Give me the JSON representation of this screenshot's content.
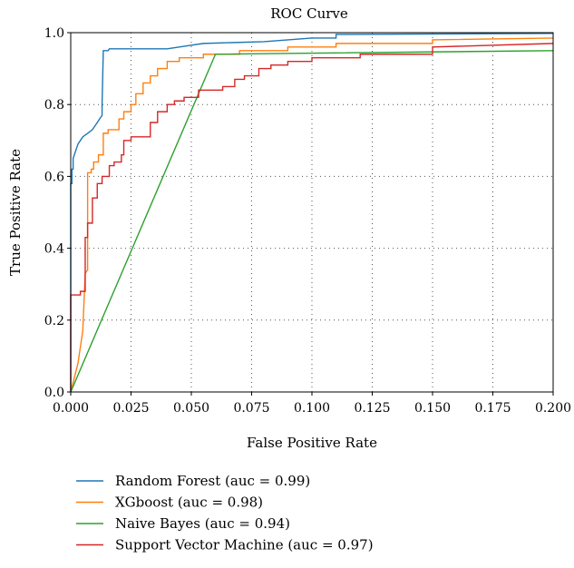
{
  "chart_data": {
    "type": "line",
    "title": "ROC Curve",
    "xlabel": "False Positive Rate",
    "ylabel": "True Positive Rate",
    "xlim": [
      0,
      0.2
    ],
    "ylim": [
      0,
      1.0
    ],
    "xticks": [
      "0.000",
      "0.025",
      "0.050",
      "0.075",
      "0.100",
      "0.125",
      "0.150",
      "0.175",
      "0.200"
    ],
    "yticks": [
      "0.0",
      "0.2",
      "0.4",
      "0.6",
      "0.8",
      "1.0"
    ],
    "grid": true,
    "legend_position": "below",
    "series": [
      {
        "name": "Random Forest (auc = 0.99)",
        "color": "#1f77b4",
        "x": [
          0,
          0,
          0.0005,
          0.0005,
          0.001,
          0.001,
          0.0015,
          0.002,
          0.003,
          0.004,
          0.005,
          0.007,
          0.009,
          0.011,
          0.012,
          0.013,
          0.013,
          0.0135,
          0.0155,
          0.016,
          0.02,
          0.04,
          0.05,
          0.055,
          0.08,
          0.1,
          0.11,
          0.11,
          0.2
        ],
        "y": [
          0,
          0.58,
          0.58,
          0.62,
          0.62,
          0.65,
          0.66,
          0.67,
          0.69,
          0.7,
          0.71,
          0.72,
          0.73,
          0.75,
          0.76,
          0.77,
          0.8,
          0.95,
          0.95,
          0.955,
          0.955,
          0.955,
          0.965,
          0.97,
          0.975,
          0.985,
          0.985,
          0.995,
          0.998
        ]
      },
      {
        "name": "XGboost (auc = 0.98)",
        "color": "#ff7f0e",
        "x": [
          0,
          0.003,
          0.005,
          0.006,
          0.007,
          0.007,
          0.0085,
          0.0085,
          0.0095,
          0.0095,
          0.0115,
          0.0115,
          0.0135,
          0.0135,
          0.0155,
          0.0155,
          0.02,
          0.02,
          0.022,
          0.022,
          0.025,
          0.025,
          0.027,
          0.027,
          0.03,
          0.03,
          0.033,
          0.033,
          0.036,
          0.036,
          0.04,
          0.04,
          0.045,
          0.045,
          0.055,
          0.055,
          0.07,
          0.07,
          0.09,
          0.09,
          0.11,
          0.11,
          0.15,
          0.15,
          0.2
        ],
        "y": [
          0,
          0.08,
          0.17,
          0.33,
          0.34,
          0.61,
          0.61,
          0.62,
          0.62,
          0.64,
          0.64,
          0.66,
          0.66,
          0.72,
          0.72,
          0.73,
          0.73,
          0.76,
          0.76,
          0.78,
          0.78,
          0.8,
          0.8,
          0.83,
          0.83,
          0.86,
          0.86,
          0.88,
          0.88,
          0.9,
          0.9,
          0.92,
          0.92,
          0.93,
          0.93,
          0.94,
          0.94,
          0.95,
          0.95,
          0.96,
          0.96,
          0.97,
          0.97,
          0.98,
          0.985
        ]
      },
      {
        "name": "Naive Bayes (auc = 0.94)",
        "color": "#2ca02c",
        "x": [
          0,
          0.06,
          0.2
        ],
        "y": [
          0,
          0.94,
          0.95
        ]
      },
      {
        "name": "Support Vector Machine (auc = 0.97)",
        "color": "#d62728",
        "x": [
          0,
          0,
          0.004,
          0.004,
          0.006,
          0.006,
          0.007,
          0.007,
          0.009,
          0.009,
          0.011,
          0.011,
          0.013,
          0.013,
          0.016,
          0.016,
          0.018,
          0.018,
          0.021,
          0.021,
          0.022,
          0.022,
          0.025,
          0.025,
          0.033,
          0.033,
          0.036,
          0.036,
          0.04,
          0.04,
          0.043,
          0.043,
          0.047,
          0.047,
          0.053,
          0.053,
          0.063,
          0.063,
          0.068,
          0.068,
          0.072,
          0.072,
          0.078,
          0.078,
          0.083,
          0.083,
          0.09,
          0.09,
          0.1,
          0.1,
          0.12,
          0.12,
          0.15,
          0.15,
          0.2
        ],
        "y": [
          0,
          0.27,
          0.27,
          0.28,
          0.28,
          0.43,
          0.43,
          0.47,
          0.47,
          0.54,
          0.54,
          0.58,
          0.58,
          0.6,
          0.6,
          0.63,
          0.63,
          0.64,
          0.64,
          0.66,
          0.66,
          0.7,
          0.7,
          0.71,
          0.71,
          0.75,
          0.75,
          0.78,
          0.78,
          0.8,
          0.8,
          0.81,
          0.81,
          0.82,
          0.82,
          0.84,
          0.84,
          0.85,
          0.85,
          0.87,
          0.87,
          0.88,
          0.88,
          0.9,
          0.9,
          0.91,
          0.91,
          0.92,
          0.92,
          0.93,
          0.93,
          0.94,
          0.94,
          0.96,
          0.97
        ]
      }
    ]
  }
}
